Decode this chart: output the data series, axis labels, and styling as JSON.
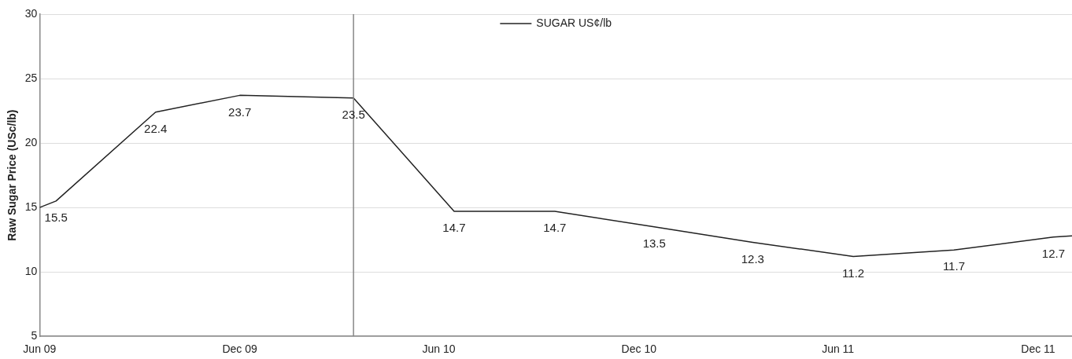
{
  "chart_data": {
    "type": "line",
    "ylabel": "Raw Sugar Price (USc/lb)",
    "x": [
      "2009-06-01",
      "2009-06-16",
      "2009-09-15",
      "2009-12-01",
      "2010-03-15",
      "2010-06-15",
      "2010-09-15",
      "2010-12-15",
      "2011-03-15",
      "2011-06-15",
      "2011-09-15",
      "2011-12-15",
      "2012-01-01"
    ],
    "series": [
      {
        "name": "SUGAR US¢/lb",
        "color": "#222222",
        "values": [
          15.0,
          15.5,
          22.4,
          23.7,
          23.5,
          14.7,
          14.7,
          13.5,
          12.3,
          11.2,
          11.7,
          12.7,
          12.8
        ],
        "value_labels": [
          null,
          "15.5",
          "22.4",
          "23.7",
          "23.5",
          "14.7",
          "14.7",
          "13.5",
          "12.3",
          "11.2",
          "11.7",
          "12.7",
          null
        ]
      }
    ],
    "xlim": [
      "2009-06-01",
      "2012-01-01"
    ],
    "xticks": [
      {
        "value": "2009-06-01",
        "label": "Jun 09"
      },
      {
        "value": "2009-12-01",
        "label": "Dec 09"
      },
      {
        "value": "2010-06-01",
        "label": "Jun 10"
      },
      {
        "value": "2010-12-01",
        "label": "Dec 10"
      },
      {
        "value": "2011-06-01",
        "label": "Jun 11"
      },
      {
        "value": "2011-12-01",
        "label": "Dec 11"
      }
    ],
    "ylim": [
      5,
      30
    ],
    "yticks": [
      5,
      10,
      15,
      20,
      25,
      30
    ],
    "ref_lines": [
      {
        "axis": "x",
        "value": "2010-03-15",
        "color": "#888888"
      }
    ],
    "grid": "y",
    "legend": "top",
    "marker": "none",
    "line_style": "solid"
  }
}
